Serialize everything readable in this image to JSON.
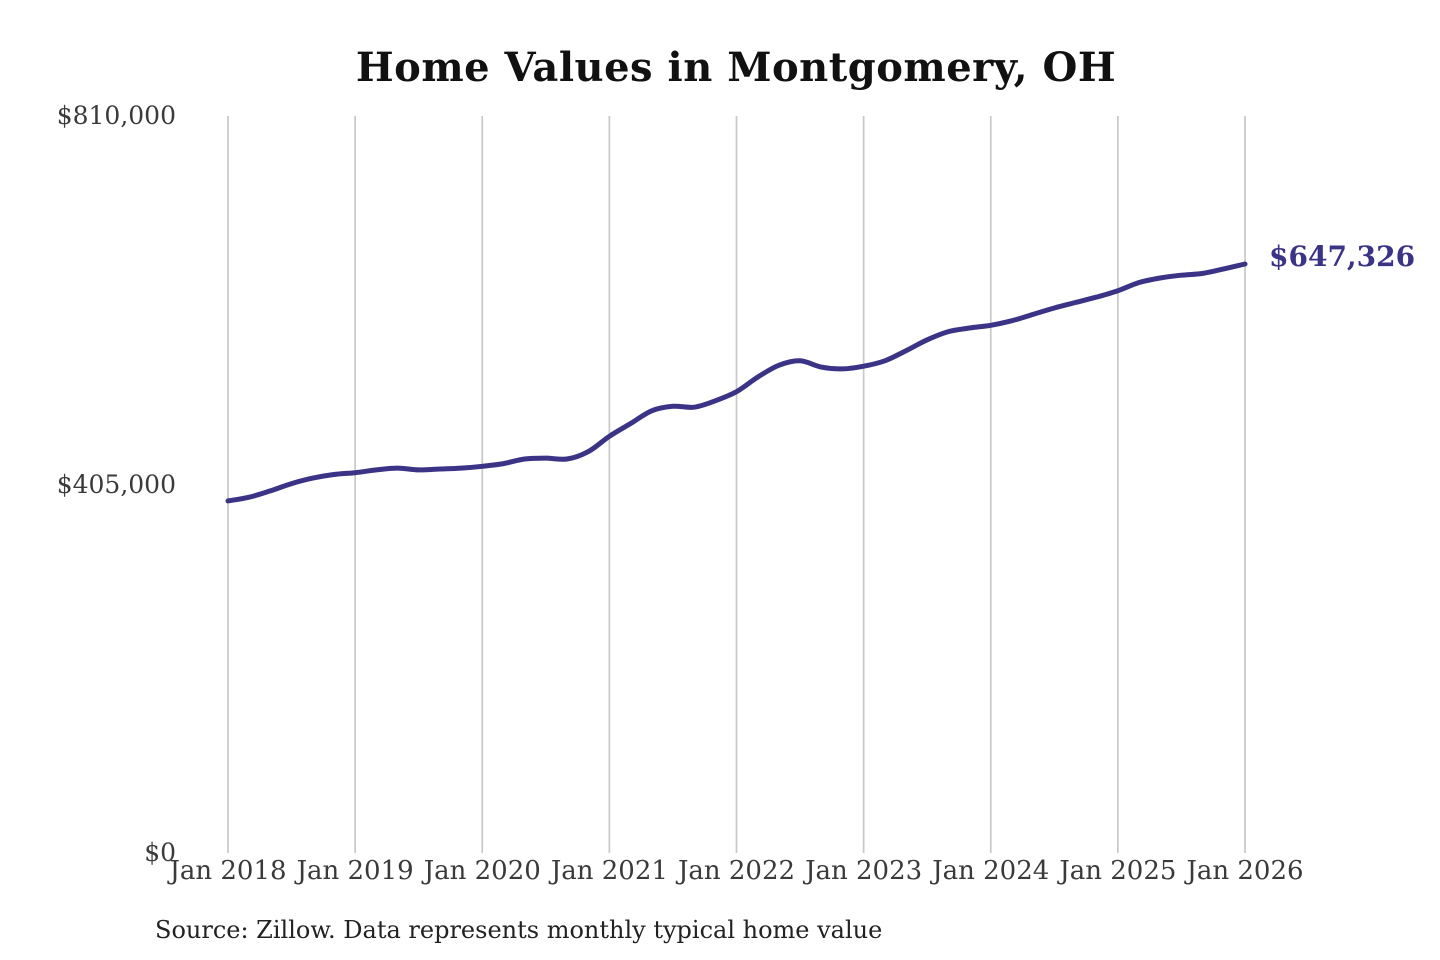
{
  "chart_data": {
    "type": "line",
    "title": "Home Values in Montgomery, OH",
    "series_name": "Monthly typical home value",
    "line_color": "#3b3386",
    "grid_color": "#c8c8c8",
    "grid": "vertical-only",
    "legend": "none",
    "xlim": [
      2018,
      2026
    ],
    "ylim": [
      0,
      810000
    ],
    "x_tick_labels": [
      "Jan 2018",
      "Jan 2019",
      "Jan 2020",
      "Jan 2021",
      "Jan 2022",
      "Jan 2023",
      "Jan 2024",
      "Jan 2025",
      "Jan 2026"
    ],
    "x_tick_values": [
      2018,
      2019,
      2020,
      2021,
      2022,
      2023,
      2024,
      2025,
      2026
    ],
    "y_tick_labels": [
      "$810,000",
      "$405,000",
      "$0"
    ],
    "y_tick_values": [
      810000,
      405000,
      0
    ],
    "end_label": "$647,326",
    "end_value": 647326,
    "x": [
      2018.0,
      2018.167,
      2018.333,
      2018.5,
      2018.667,
      2018.833,
      2019.0,
      2019.167,
      2019.333,
      2019.5,
      2019.667,
      2019.833,
      2020.0,
      2020.167,
      2020.333,
      2020.5,
      2020.667,
      2020.833,
      2021.0,
      2021.167,
      2021.333,
      2021.5,
      2021.667,
      2021.833,
      2022.0,
      2022.167,
      2022.333,
      2022.5,
      2022.667,
      2022.833,
      2023.0,
      2023.167,
      2023.333,
      2023.5,
      2023.667,
      2023.833,
      2024.0,
      2024.167,
      2024.333,
      2024.5,
      2024.667,
      2024.833,
      2025.0,
      2025.167,
      2025.333,
      2025.5,
      2025.667,
      2025.833,
      2026.0
    ],
    "values": [
      387000,
      391000,
      398000,
      406000,
      412000,
      416000,
      418000,
      421000,
      423000,
      421000,
      422000,
      423000,
      425000,
      428000,
      433000,
      434000,
      433000,
      441000,
      458000,
      472000,
      486000,
      491000,
      490000,
      497000,
      507000,
      523000,
      536000,
      541000,
      534000,
      532000,
      535000,
      541000,
      552000,
      564000,
      573000,
      577000,
      580000,
      585000,
      592000,
      599000,
      605000,
      611000,
      618000,
      627000,
      632000,
      635000,
      637000,
      642000,
      647326
    ]
  },
  "footer": {
    "source": "Source: Zillow. Data represents monthly typical home value"
  }
}
